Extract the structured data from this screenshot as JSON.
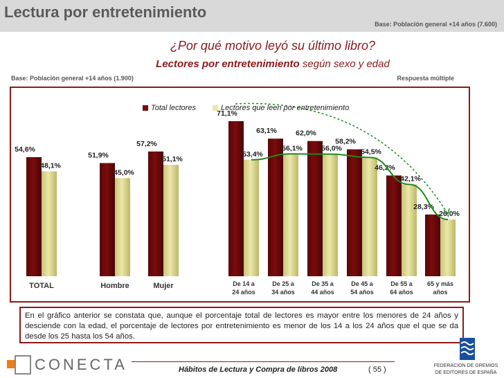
{
  "header": {
    "title": "Lectura por entretenimiento",
    "base": "Base: Población general +14 años (7.600)"
  },
  "question": "¿Por qué motivo leyó su último libro?",
  "subtitle_bold": "Lectores por entretenimiento",
  "subtitle_rest": " según sexo y edad",
  "base2": "Base: Población general +14 años (1.900)",
  "multiple": "Respuesta múltiple",
  "chart_data": {
    "type": "bar",
    "categories": [
      "TOTAL",
      "Hombre",
      "Mujer",
      "De 14 a 24 años",
      "De 25 a 34 años",
      "De 35 a 44 años",
      "De 45 a 54 años",
      "De 55 a 64 años",
      "65 y más años"
    ],
    "category_lines": [
      [
        "TOTAL"
      ],
      [
        "Hombre"
      ],
      [
        "Mujer"
      ],
      [
        "De 14 a",
        "24 años"
      ],
      [
        "De 25 a",
        "34 años"
      ],
      [
        "De 35 a",
        "44 años"
      ],
      [
        "De 45 a",
        "54 años"
      ],
      [
        "De 55 a",
        "64 años"
      ],
      [
        "65 y más",
        "años"
      ]
    ],
    "series": [
      {
        "name": "Total lectores",
        "color": "#7a0c0c",
        "values": [
          54.6,
          51.9,
          57.2,
          71.1,
          63.1,
          62.0,
          58.2,
          46.2,
          28.3
        ]
      },
      {
        "name": "Lectores que leen por entretenimiento",
        "color": "#ebe8a8",
        "values": [
          48.1,
          45.0,
          51.1,
          53.4,
          56.1,
          56.0,
          54.5,
          42.1,
          26.0
        ]
      }
    ],
    "labels": [
      [
        "54,6%",
        "51,9%",
        "57,2%",
        "71,1%",
        "63,1%",
        "62,0%",
        "58,2%",
        "46,2%",
        "28,3%"
      ],
      [
        "48,1%",
        "45,0%",
        "51,1%",
        "53,4%",
        "56,1%",
        "56,0%",
        "54,5%",
        "42,1%",
        "26,0%"
      ]
    ],
    "ylim": [
      0,
      80
    ],
    "title": "",
    "xlabel": "",
    "ylabel": "",
    "grid": false,
    "legend": "top",
    "trend_color": "#1e8a1e"
  },
  "note": "En el gráfico anterior se constata que, aunque el porcentaje total de lectores es mayor entre los menores de 24 años y desciende con la edad, el porcentaje de lectores por entretenimiento es menor de los 14 a los 24 años que el que se da desde los 25 hasta los 54 años.",
  "footer": {
    "title": "Hábitos de Lectura y Compra de libros 2008",
    "page": "( 55 )",
    "logo": "CONECTA",
    "federation_1": "FEDERACIÓN DE GREMIOS",
    "federation_2": "DE EDITORES DE ESPAÑA"
  }
}
